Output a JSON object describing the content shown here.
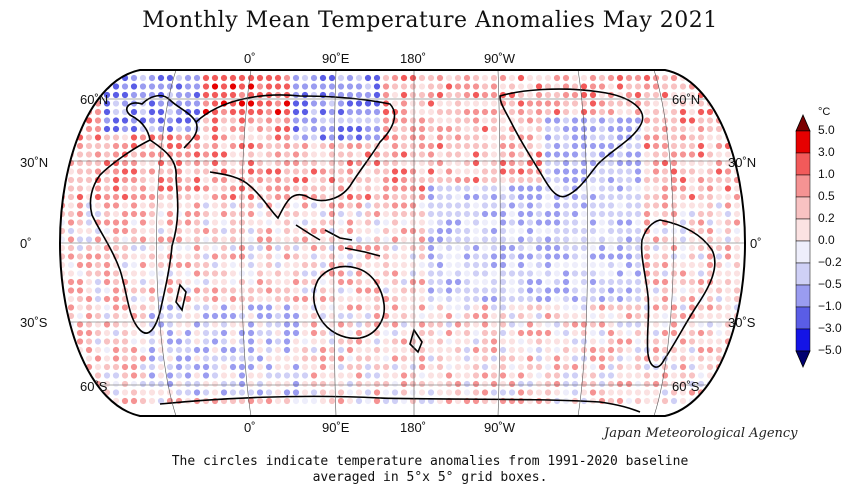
{
  "title": "Monthly Mean Temperature Anomalies May 2021",
  "top_lon_labels": [
    "0˚",
    "90˚E",
    "180˚",
    "90˚W"
  ],
  "bottom_lon_labels": [
    "0˚",
    "90˚E",
    "180˚",
    "90˚W"
  ],
  "left_lat_labels": [
    "60˚N",
    "30˚N",
    "0˚",
    "30˚S",
    "60˚S"
  ],
  "right_lat_labels": [
    "60˚N",
    "30˚N",
    "0˚",
    "30˚S",
    "60˚S"
  ],
  "agency": "Japan Meteorological Agency",
  "caption_line1": "The circles indicate temperature anomalies from 1991-2020 baseline",
  "caption_line2": "averaged in 5°x 5° grid boxes.",
  "colorbar": {
    "unit": "°C",
    "ticks": [
      "5.0",
      "3.0",
      "1.0",
      "0.5",
      "0.2",
      "0.0",
      "−0.2",
      "−0.5",
      "−1.0",
      "−3.0",
      "−5.0"
    ],
    "colors": [
      "#e60000",
      "#f25a5a",
      "#f59393",
      "#f8c2c2",
      "#fbe2e2",
      "#eeeefb",
      "#cfd0f6",
      "#9a9cf0",
      "#5a5de6",
      "#1414e6"
    ]
  }
}
